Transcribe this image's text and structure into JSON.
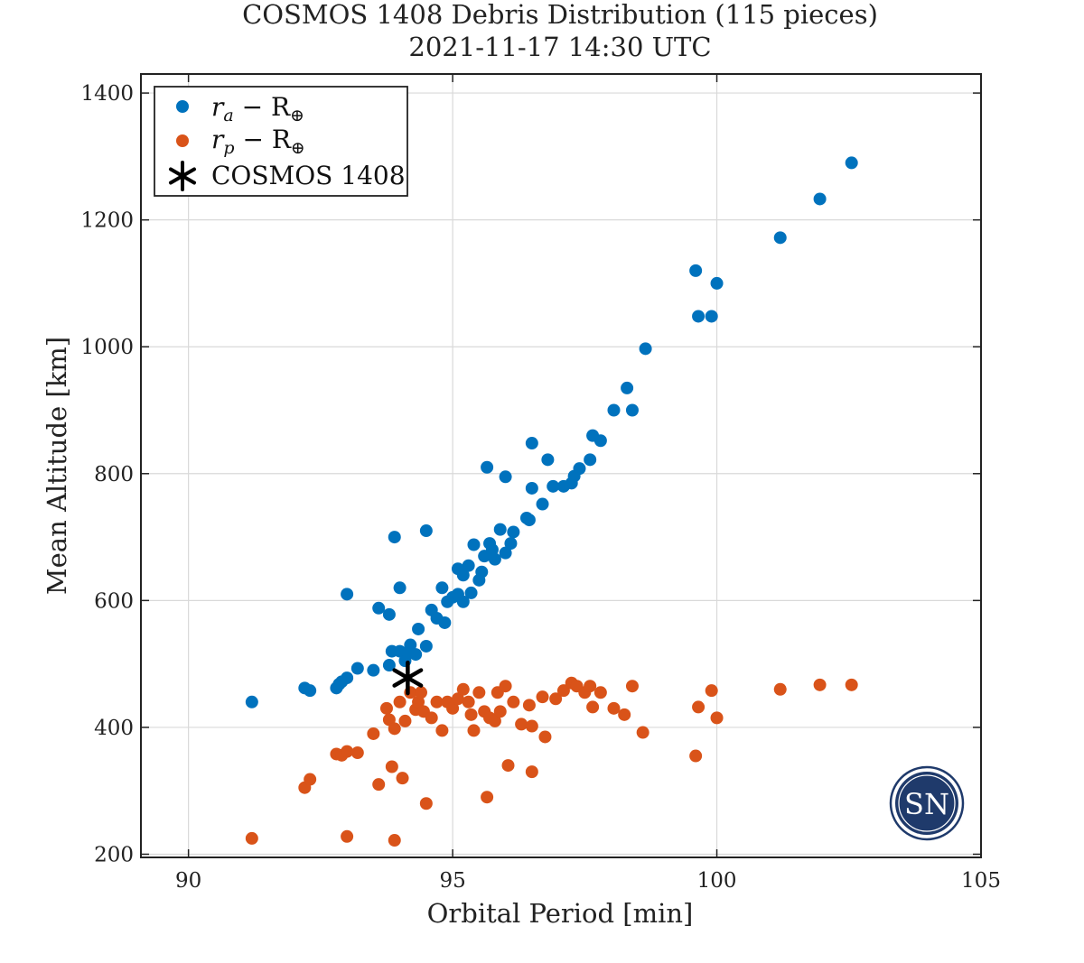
{
  "chart_data": {
    "type": "scatter",
    "title": "COSMOS 1408 Debris Distribution (115 pieces)",
    "subtitle": "2021-11-17 14:30 UTC",
    "xlabel": "Orbital Period [min]",
    "ylabel": "Mean Altitude [km]",
    "xlim": [
      89.1,
      105
    ],
    "ylim": [
      195,
      1430
    ],
    "xticks": [
      90,
      95,
      100,
      105
    ],
    "yticks": [
      200,
      400,
      600,
      800,
      1000,
      1200,
      1400
    ],
    "grid": true,
    "legend_position": "top-left",
    "series": [
      {
        "name_parts": {
          "main": "r",
          "sub": "a",
          "op": " − R",
          "earth_sub": "⊕"
        },
        "color": "#0072BD",
        "marker": "circle",
        "points": [
          [
            91.2,
            440
          ],
          [
            92.2,
            462
          ],
          [
            92.3,
            458
          ],
          [
            92.8,
            462
          ],
          [
            92.85,
            468
          ],
          [
            92.9,
            472
          ],
          [
            93.0,
            478
          ],
          [
            93.0,
            610
          ],
          [
            93.2,
            493
          ],
          [
            93.5,
            490
          ],
          [
            93.6,
            588
          ],
          [
            93.8,
            498
          ],
          [
            93.8,
            578
          ],
          [
            93.85,
            520
          ],
          [
            93.9,
            700
          ],
          [
            94.0,
            620
          ],
          [
            94.0,
            520
          ],
          [
            94.1,
            505
          ],
          [
            94.15,
            518
          ],
          [
            94.2,
            530
          ],
          [
            94.3,
            515
          ],
          [
            94.35,
            555
          ],
          [
            94.5,
            528
          ],
          [
            94.5,
            710
          ],
          [
            94.6,
            585
          ],
          [
            94.7,
            572
          ],
          [
            94.8,
            620
          ],
          [
            94.85,
            565
          ],
          [
            94.9,
            598
          ],
          [
            95.0,
            605
          ],
          [
            95.1,
            610
          ],
          [
            95.1,
            650
          ],
          [
            95.2,
            640
          ],
          [
            95.2,
            598
          ],
          [
            95.3,
            655
          ],
          [
            95.35,
            612
          ],
          [
            95.4,
            688
          ],
          [
            95.5,
            632
          ],
          [
            95.55,
            645
          ],
          [
            95.6,
            670
          ],
          [
            95.65,
            810
          ],
          [
            95.7,
            690
          ],
          [
            95.75,
            680
          ],
          [
            95.8,
            665
          ],
          [
            95.9,
            712
          ],
          [
            96.0,
            675
          ],
          [
            96.0,
            795
          ],
          [
            96.1,
            690
          ],
          [
            96.15,
            708
          ],
          [
            96.4,
            730
          ],
          [
            96.45,
            727
          ],
          [
            96.5,
            777
          ],
          [
            96.5,
            848
          ],
          [
            96.7,
            752
          ],
          [
            96.8,
            822
          ],
          [
            96.9,
            780
          ],
          [
            97.1,
            780
          ],
          [
            97.25,
            785
          ],
          [
            97.3,
            796
          ],
          [
            97.4,
            808
          ],
          [
            97.6,
            822
          ],
          [
            97.65,
            860
          ],
          [
            97.8,
            852
          ],
          [
            98.05,
            900
          ],
          [
            98.3,
            935
          ],
          [
            98.4,
            900
          ],
          [
            98.65,
            997
          ],
          [
            99.6,
            1120
          ],
          [
            99.65,
            1048
          ],
          [
            99.9,
            1048
          ],
          [
            100.0,
            1100
          ],
          [
            101.2,
            1172
          ],
          [
            101.95,
            1233
          ],
          [
            102.55,
            1290
          ]
        ]
      },
      {
        "name_parts": {
          "main": "r",
          "sub": "p",
          "op": " − R",
          "earth_sub": "⊕"
        },
        "color": "#D95319",
        "marker": "circle",
        "points": [
          [
            91.2,
            225
          ],
          [
            92.2,
            305
          ],
          [
            92.3,
            318
          ],
          [
            92.8,
            358
          ],
          [
            92.9,
            356
          ],
          [
            93.0,
            362
          ],
          [
            93.0,
            228
          ],
          [
            93.2,
            360
          ],
          [
            93.5,
            390
          ],
          [
            93.6,
            310
          ],
          [
            93.75,
            430
          ],
          [
            93.8,
            412
          ],
          [
            93.85,
            338
          ],
          [
            93.9,
            398
          ],
          [
            93.9,
            222
          ],
          [
            94.0,
            440
          ],
          [
            94.05,
            320
          ],
          [
            94.1,
            410
          ],
          [
            94.2,
            455
          ],
          [
            94.3,
            428
          ],
          [
            94.35,
            440
          ],
          [
            94.4,
            455
          ],
          [
            94.45,
            425
          ],
          [
            94.5,
            280
          ],
          [
            94.6,
            415
          ],
          [
            94.7,
            440
          ],
          [
            94.8,
            395
          ],
          [
            94.9,
            440
          ],
          [
            95.0,
            430
          ],
          [
            95.1,
            445
          ],
          [
            95.2,
            460
          ],
          [
            95.3,
            440
          ],
          [
            95.35,
            420
          ],
          [
            95.4,
            395
          ],
          [
            95.5,
            455
          ],
          [
            95.6,
            425
          ],
          [
            95.65,
            290
          ],
          [
            95.7,
            415
          ],
          [
            95.8,
            410
          ],
          [
            95.85,
            455
          ],
          [
            95.9,
            425
          ],
          [
            96.0,
            465
          ],
          [
            96.05,
            340
          ],
          [
            96.15,
            440
          ],
          [
            96.3,
            405
          ],
          [
            96.45,
            435
          ],
          [
            96.5,
            402
          ],
          [
            96.5,
            330
          ],
          [
            96.7,
            448
          ],
          [
            96.75,
            385
          ],
          [
            96.95,
            445
          ],
          [
            97.1,
            458
          ],
          [
            97.25,
            470
          ],
          [
            97.35,
            465
          ],
          [
            97.5,
            455
          ],
          [
            97.6,
            465
          ],
          [
            97.65,
            432
          ],
          [
            97.8,
            455
          ],
          [
            98.05,
            430
          ],
          [
            98.25,
            420
          ],
          [
            98.4,
            465
          ],
          [
            98.6,
            392
          ],
          [
            99.6,
            355
          ],
          [
            99.65,
            432
          ],
          [
            99.9,
            458
          ],
          [
            100.0,
            415
          ],
          [
            101.2,
            460
          ],
          [
            101.95,
            467
          ],
          [
            102.55,
            467
          ]
        ]
      },
      {
        "name": "COSMOS 1408",
        "color": "#000000",
        "marker": "asterisk",
        "points": [
          [
            94.15,
            478
          ]
        ]
      }
    ]
  },
  "watermark": {
    "text": "SN",
    "color": "#1f3a6b"
  }
}
